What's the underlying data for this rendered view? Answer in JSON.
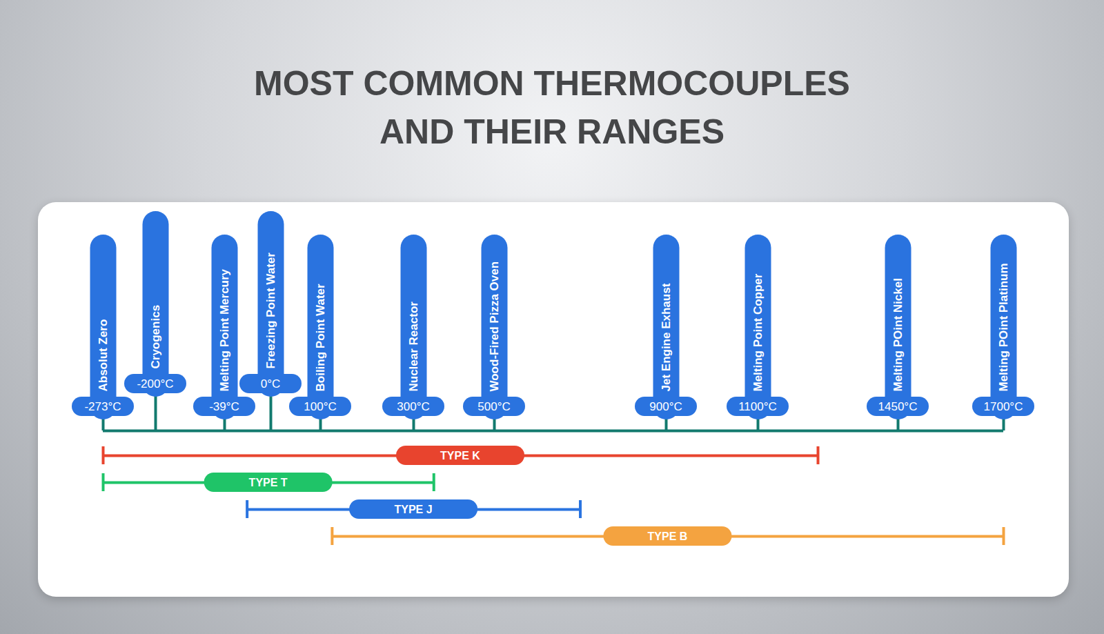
{
  "chart_data": {
    "type": "range",
    "title": "MOST COMMON THERMOCOUPLES AND THEIR RANGES",
    "color": "#2a73df",
    "xlim": [
      -273,
      1700
    ],
    "xticks": [
      {
        "value": -273,
        "label": "-273°C",
        "name": "Absolut Zero"
      },
      {
        "value": -200,
        "label": "-200°C",
        "name": "Cryogenics"
      },
      {
        "value": -39,
        "label": "-39°C",
        "name": "Melting Point Mercury"
      },
      {
        "value": 0,
        "label": "0°C",
        "name": "Freezing Point Water"
      },
      {
        "value": 100,
        "label": "100°C",
        "name": "Boiling Point Water"
      },
      {
        "value": 300,
        "label": "300°C",
        "name": "Nuclear Reactor"
      },
      {
        "value": 500,
        "label": "500°C",
        "name": "Wood-Fired Pizza Oven"
      },
      {
        "value": 900,
        "label": "900°C",
        "name": "Jet Engine Exhaust"
      },
      {
        "value": 1100,
        "label": "1100°C",
        "name": "Melting Point Copper"
      },
      {
        "value": 1450,
        "label": "1450°C",
        "name": "Melting POint Nickel"
      },
      {
        "value": 1700,
        "label": "1700°C",
        "name": "Melting POint Platinum"
      }
    ],
    "series": [
      {
        "name": "TYPE K",
        "color": "#e8442e",
        "values": [
          -273,
          1250
        ]
      },
      {
        "name": "TYPE T",
        "color": "#1fc468",
        "values": [
          -273,
          350
        ]
      },
      {
        "name": "TYPE J",
        "color": "#2a74e0",
        "values": [
          -20,
          700
        ]
      },
      {
        "name": "TYPE B",
        "color": "#f4a340",
        "values": [
          125,
          1700
        ]
      }
    ],
    "tick_labels": "x"
  }
}
